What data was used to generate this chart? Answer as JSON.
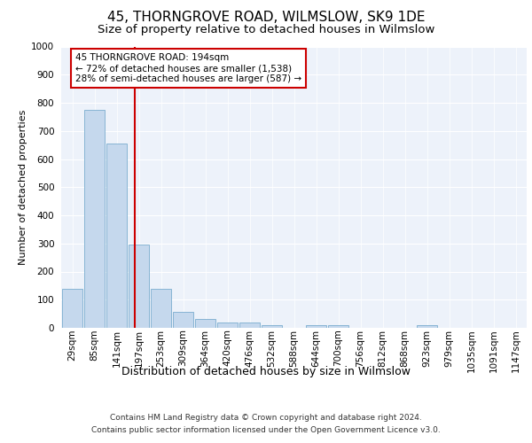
{
  "title1": "45, THORNGROVE ROAD, WILMSLOW, SK9 1DE",
  "title2": "Size of property relative to detached houses in Wilmslow",
  "xlabel": "Distribution of detached houses by size in Wilmslow",
  "ylabel": "Number of detached properties",
  "categories": [
    "29sqm",
    "85sqm",
    "141sqm",
    "197sqm",
    "253sqm",
    "309sqm",
    "364sqm",
    "420sqm",
    "476sqm",
    "532sqm",
    "588sqm",
    "644sqm",
    "700sqm",
    "756sqm",
    "812sqm",
    "868sqm",
    "923sqm",
    "979sqm",
    "1035sqm",
    "1091sqm",
    "1147sqm"
  ],
  "values": [
    140,
    775,
    655,
    295,
    138,
    57,
    33,
    20,
    20,
    10,
    0,
    10,
    10,
    0,
    0,
    0,
    10,
    0,
    0,
    0,
    0
  ],
  "bar_color": "#c5d8ed",
  "bar_edge_color": "#7aadce",
  "property_line_x": 2.82,
  "annotation_text": "45 THORNGROVE ROAD: 194sqm\n← 72% of detached houses are smaller (1,538)\n28% of semi-detached houses are larger (587) →",
  "annotation_box_color": "#ffffff",
  "annotation_box_edge": "#cc0000",
  "property_line_color": "#cc0000",
  "ylim": [
    0,
    1000
  ],
  "yticks": [
    0,
    100,
    200,
    300,
    400,
    500,
    600,
    700,
    800,
    900,
    1000
  ],
  "footer_line1": "Contains HM Land Registry data © Crown copyright and database right 2024.",
  "footer_line2": "Contains public sector information licensed under the Open Government Licence v3.0.",
  "bg_color": "#edf2fa",
  "grid_color": "#ffffff",
  "title1_fontsize": 11,
  "title2_fontsize": 9.5,
  "xlabel_fontsize": 9,
  "ylabel_fontsize": 8,
  "tick_fontsize": 7.5,
  "footer_fontsize": 6.5,
  "annot_fontsize": 7.5
}
